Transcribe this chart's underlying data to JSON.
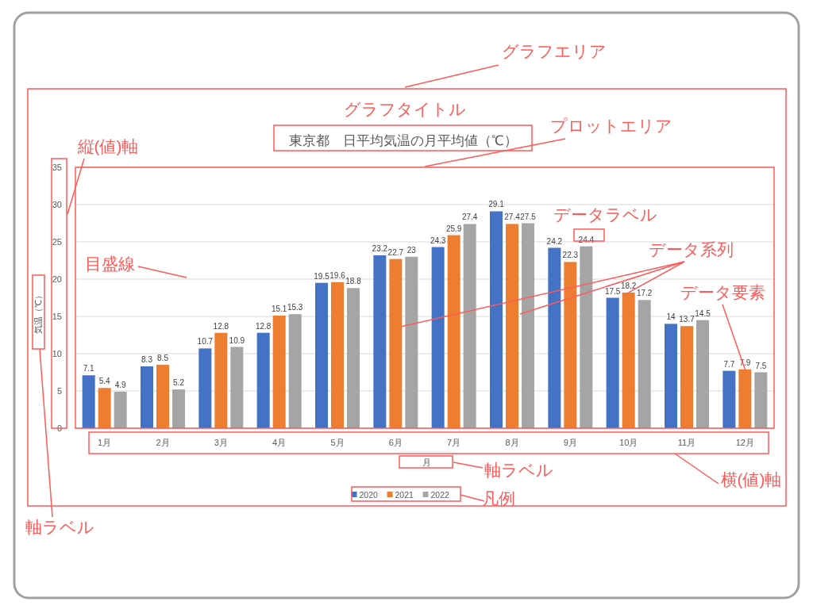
{
  "chart_data": {
    "type": "bar",
    "title": "東京都　日平均気温の月平均値（℃）",
    "xlabel": "月",
    "ylabel": "気温（℃）",
    "categories": [
      "1月",
      "2月",
      "3月",
      "4月",
      "5月",
      "6月",
      "7月",
      "8月",
      "9月",
      "10月",
      "11月",
      "12月"
    ],
    "series": [
      {
        "name": "2020",
        "color": "#4472c4",
        "values": [
          7.1,
          8.3,
          10.7,
          12.8,
          19.5,
          23.2,
          24.3,
          29.1,
          24.2,
          17.5,
          14,
          7.7
        ]
      },
      {
        "name": "2021",
        "color": "#ed7d31",
        "values": [
          5.4,
          8.5,
          12.8,
          15.1,
          19.6,
          22.7,
          25.9,
          27.4,
          22.3,
          18.2,
          13.7,
          7.9
        ]
      },
      {
        "name": "2022",
        "color": "#a5a5a5",
        "values": [
          4.9,
          5.2,
          10.9,
          15.3,
          18.8,
          23,
          27.4,
          27.5,
          24.4,
          17.2,
          14.5,
          7.5
        ]
      }
    ],
    "ylim": [
      0,
      35
    ],
    "yticks": [
      0,
      5,
      10,
      15,
      20,
      25,
      30,
      35
    ],
    "grid": "y",
    "legend": "bottom",
    "data_labels": true,
    "annotations": [
      "グラフエリア",
      "グラフタイトル",
      "プロットエリア",
      "縦(値)軸",
      "目盛線",
      "データラベル",
      {
        "text": "データ系列",
        "x": "10月",
        "y": 18.2
      },
      {
        "text": "データ要素",
        "x": "12月",
        "y": 7.9
      },
      "軸ラベル",
      "横(値)軸",
      "凡例",
      "軸ラベル"
    ]
  }
}
